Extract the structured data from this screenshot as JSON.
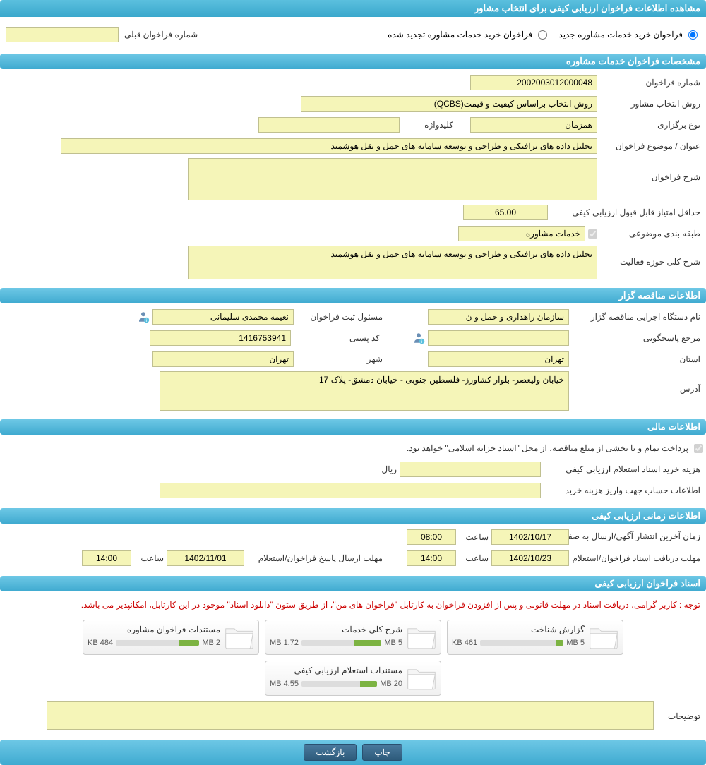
{
  "header": {
    "title": "مشاهده اطلاعات فراخوان ارزیابی کیفی برای انتخاب مشاور"
  },
  "type": {
    "option1": "فراخوان خرید خدمات مشاوره جدید",
    "option2": "فراخوان خرید خدمات مشاوره تجدید شده",
    "prev_label": "شماره فراخوان قبلی",
    "prev_value": ""
  },
  "sec1": {
    "title": "مشخصات فراخوان خدمات مشاوره",
    "num_label": "شماره فراخوان",
    "num_value": "2002003012000048",
    "method_label": "روش انتخاب مشاور",
    "method_value": "روش انتخاب براساس کیفیت و قیمت(QCBS)",
    "hold_label": "نوع برگزاری",
    "hold_value": "همزمان",
    "key_label": "کلیدواژه",
    "key_value": "",
    "subject_label": "عنوان / موضوع فراخوان",
    "subject_value": "تحلیل داده های ترافیکی و طراحی و توسعه سامانه های حمل و نقل هوشمند",
    "desc_label": "شرح فراخوان",
    "desc_value": "",
    "minscore_label": "حداقل امتیاز قابل قبول ارزیابی کیفی",
    "minscore_value": "65.00",
    "cat_label": "طبقه بندی موضوعی",
    "cat_chk": "خدمات مشاوره",
    "activity_label": "شرح کلی حوزه فعالیت",
    "activity_value": "تحلیل داده های ترافیکی و طراحی و توسعه سامانه های حمل و نقل هوشمند"
  },
  "sec2": {
    "title": "اطلاعات مناقصه گزار",
    "org_label": "نام دستگاه اجرایی مناقصه گزار",
    "org_value": "سازمان راهداری و حمل و ن",
    "reg_label": "مسئول ثبت فراخوان",
    "reg_value": "نعیمه محمدی سلیمانی",
    "resp_label": "مرجع پاسخگویی",
    "resp_value": "",
    "postal_label": "کد پستی",
    "postal_value": "1416753941",
    "province_label": "استان",
    "province_value": "تهران",
    "city_label": "شهر",
    "city_value": "تهران",
    "addr_label": "آدرس",
    "addr_value": "خیابان ولیعصر- بلوار کشاورز- فلسطین جنوبی - خیابان دمشق- پلاک 17"
  },
  "sec3": {
    "title": "اطلاعات مالی",
    "pay_note": "پرداخت تمام و یا بخشی از مبلغ مناقصه، از محل \"اسناد خزانه اسلامی\" خواهد بود.",
    "cost_label": "هزینه خرید اسناد استعلام ارزیابی کیفی",
    "cost_value": "",
    "cost_unit": "ریال",
    "acc_label": "اطلاعات حساب جهت واریز هزینه خرید",
    "acc_value": ""
  },
  "sec4": {
    "title": "اطلاعات زمانی ارزیابی کیفی",
    "pub_label": "زمان آخرین انتشار آگهی/ارسال به صفحه اعلان عمومی",
    "pub_date": "1402/10/17",
    "pub_time_label": "ساعت",
    "pub_time": "08:00",
    "rec_label": "مهلت دریافت اسناد فراخوان/استعلام",
    "rec_date": "1402/10/23",
    "rec_time_label": "ساعت",
    "rec_time": "14:00",
    "resp_label": "مهلت ارسال پاسخ فراخوان/استعلام",
    "resp_date": "1402/11/01",
    "resp_time_label": "ساعت",
    "resp_time": "14:00"
  },
  "sec5": {
    "title": "اسناد فراخوان ارزیابی کیفی",
    "notice": "توجه : کاربر گرامی، دریافت اسناد در مهلت قانونی و پس از افزودن فراخوان به کارتابل \"فراخوان های من\"، از طریق ستون \"دانلود اسناد\" موجود در این کارتابل، امکانپذیر می باشد.",
    "docs": [
      {
        "title": "گزارش شناخت",
        "used": "461 KB",
        "total": "5 MB",
        "pct": 9
      },
      {
        "title": "شرح کلی خدمات",
        "used": "1.72 MB",
        "total": "5 MB",
        "pct": 34
      },
      {
        "title": "مستندات فراخوان مشاوره",
        "used": "484 KB",
        "total": "2 MB",
        "pct": 24
      },
      {
        "title": "مستندات استعلام ارزیابی کیفی",
        "used": "4.55 MB",
        "total": "20 MB",
        "pct": 23
      }
    ],
    "notes_label": "توضیحات",
    "notes_value": ""
  },
  "buttons": {
    "print": "چاپ",
    "back": "بازگشت"
  },
  "colors": {
    "header_bg": "#49b1d6",
    "field_bg": "#f5f5b8",
    "btn_bg": "#3a6a8e",
    "bar_fill": "#7cb342"
  }
}
